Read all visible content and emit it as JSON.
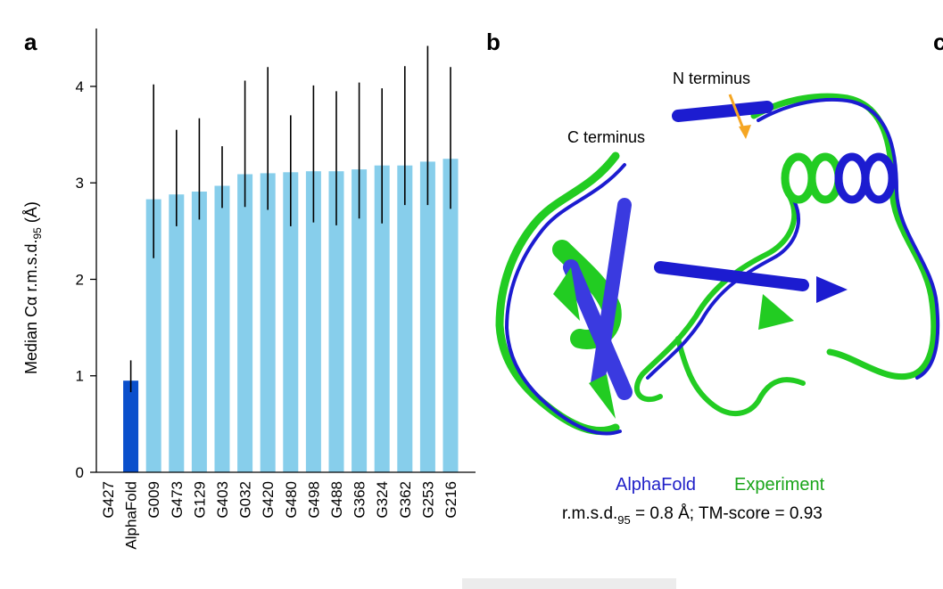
{
  "panels": {
    "a": "a",
    "b": "b",
    "c": "c"
  },
  "chart_data": {
    "type": "bar",
    "ylabel_main": "Median Cα r.m.s.d.",
    "ylabel_sub": "95",
    "ylabel_unit": " (Å)",
    "ylim": [
      0,
      4.6
    ],
    "yticks": [
      0,
      1,
      2,
      3,
      4
    ],
    "categories": [
      "G427",
      "AlphaFold",
      "G009",
      "G473",
      "G129",
      "G403",
      "G032",
      "G420",
      "G480",
      "G498",
      "G488",
      "G368",
      "G324",
      "G362",
      "G253",
      "G216"
    ],
    "values": [
      0.0,
      0.95,
      2.83,
      2.88,
      2.91,
      2.97,
      3.09,
      3.1,
      3.11,
      3.12,
      3.12,
      3.14,
      3.18,
      3.18,
      3.22,
      3.25
    ],
    "error_low": [
      null,
      0.83,
      2.22,
      2.55,
      2.62,
      2.74,
      2.75,
      2.72,
      2.55,
      2.59,
      2.56,
      2.63,
      2.58,
      2.77,
      2.77,
      2.73
    ],
    "error_high": [
      null,
      1.16,
      4.02,
      3.55,
      3.67,
      3.38,
      4.06,
      4.2,
      3.7,
      4.01,
      3.95,
      4.04,
      3.98,
      4.21,
      4.42,
      4.2
    ],
    "highlight": "AlphaFold",
    "colors": {
      "highlight": "#0a4fcc",
      "default": "#87ceeb",
      "error": "#000000"
    }
  },
  "structure": {
    "n_terminus": "N terminus",
    "c_terminus": "C terminus",
    "legend_alphafold": "AlphaFold",
    "legend_experiment": "Experiment",
    "rmsd_prefix": "r.m.s.d.",
    "rmsd_sub": "95",
    "rmsd_suffix": " = 0.8 Å; TM-score = 0.93",
    "colors": {
      "alphafold": "#1c1cd0",
      "experiment": "#22cc22",
      "arrow": "#f5a623"
    }
  }
}
